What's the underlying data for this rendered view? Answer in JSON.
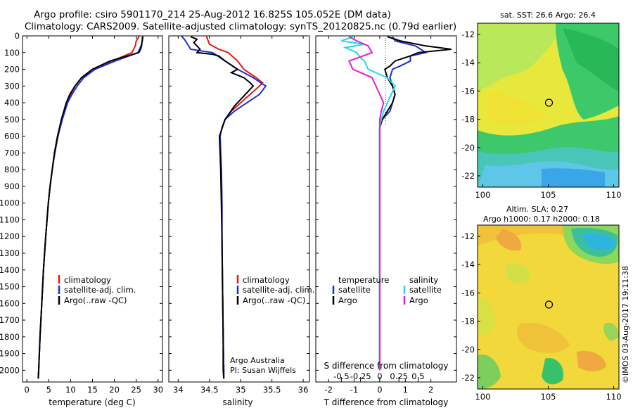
{
  "header": {
    "line1": "Argo profile: csiro 5901170_214 25-Aug-2012 16.825S 105.052E (DM data)",
    "line2": "Climatology: CARS2009. Satellite-adjusted climatology: synTS_20120825.nc (0.79d earlier)"
  },
  "colors": {
    "climatology": "#e8190f",
    "satellite": "#1a2fd6",
    "argo": "#000000",
    "satellite_diff": "#22d8e8",
    "argo_diff": "#e81ad0"
  },
  "chart_data": [
    {
      "name": "temperature",
      "type": "line",
      "xlabel": "temperature (deg C)",
      "ylabel": "",
      "xlim": [
        -1,
        31
      ],
      "ylim": [
        2070,
        0
      ],
      "xticks": [
        0,
        5,
        10,
        15,
        20,
        25,
        30
      ],
      "yticks": [
        0,
        100,
        200,
        300,
        400,
        500,
        600,
        700,
        800,
        900,
        1000,
        1100,
        1200,
        1300,
        1400,
        1500,
        1600,
        1700,
        1800,
        1900,
        2000
      ],
      "legend": [
        "climatology",
        "satellite-adj. clim.",
        "Argo(..raw -QC)"
      ],
      "series": [
        {
          "name": "climatology",
          "depth": [
            0,
            10,
            30,
            60,
            100,
            150,
            200,
            250,
            300,
            350,
            400,
            500,
            600,
            700,
            800,
            900,
            1000,
            1200,
            1400,
            1600,
            1800,
            2000,
            2050
          ],
          "values": [
            25.7,
            25.5,
            25.0,
            24.8,
            24.0,
            19.5,
            15.0,
            12.5,
            11.0,
            10.0,
            9.0,
            8.0,
            7.0,
            6.3,
            5.8,
            5.3,
            4.9,
            4.3,
            3.8,
            3.4,
            3.0,
            2.7,
            2.6
          ]
        },
        {
          "name": "satellite-adj. clim.",
          "depth": [
            0,
            10,
            30,
            60,
            100,
            150,
            200,
            250,
            300,
            350,
            400,
            500,
            600,
            700,
            800,
            900,
            1000,
            1200,
            1400,
            1600,
            1800,
            2000,
            2050
          ],
          "values": [
            26.6,
            26.5,
            26.4,
            26.1,
            25.4,
            20.2,
            15.6,
            13.0,
            11.5,
            10.3,
            9.3,
            8.1,
            7.1,
            6.4,
            5.8,
            5.3,
            4.9,
            4.3,
            3.8,
            3.4,
            3.0,
            2.7,
            2.6
          ]
        },
        {
          "name": "Argo(..raw -QC)",
          "depth": [
            5,
            20,
            40,
            60,
            80,
            100,
            150,
            200,
            250,
            300,
            350,
            400,
            500,
            600,
            700,
            800,
            900,
            1000,
            1200,
            1400,
            1600,
            1800,
            2000,
            2050
          ],
          "values": [
            26.4,
            26.4,
            26.3,
            26.2,
            26.0,
            25.6,
            19.0,
            15.0,
            12.5,
            11.0,
            9.8,
            9.0,
            7.9,
            7.0,
            6.3,
            5.8,
            5.3,
            4.9,
            4.3,
            3.8,
            3.4,
            3.0,
            2.7,
            2.6
          ]
        }
      ],
      "annotations": []
    },
    {
      "name": "salinity",
      "type": "line",
      "xlabel": "salinity",
      "ylabel": "",
      "xlim": [
        33.85,
        36.1
      ],
      "ylim": [
        2070,
        0
      ],
      "xticks": [
        34,
        34.5,
        35,
        35.5,
        36
      ],
      "legend": [
        "climatology",
        "satellite-adj. clim.",
        "Argo(..raw -QC)"
      ],
      "series": [
        {
          "name": "climatology",
          "depth": [
            0,
            50,
            80,
            100,
            150,
            200,
            250,
            280,
            300,
            350,
            400,
            450,
            500,
            550,
            600,
            700,
            800,
            1000,
            1200,
            1500,
            1800,
            2000,
            2050
          ],
          "values": [
            34.45,
            34.5,
            34.65,
            34.8,
            34.95,
            35.05,
            35.25,
            35.35,
            35.3,
            35.15,
            35.0,
            34.85,
            34.75,
            34.7,
            34.67,
            34.68,
            34.69,
            34.7,
            34.7,
            34.71,
            34.72,
            34.73,
            34.73
          ]
        },
        {
          "name": "satellite-adj. clim.",
          "depth": [
            0,
            20,
            50,
            80,
            100,
            150,
            200,
            250,
            300,
            350,
            400,
            450,
            500,
            550,
            600,
            700,
            800,
            1000,
            1200,
            1500,
            1800,
            2000,
            2050
          ],
          "values": [
            34.05,
            34.1,
            34.15,
            34.2,
            34.55,
            34.75,
            34.95,
            35.2,
            35.4,
            35.3,
            35.1,
            34.9,
            34.75,
            34.7,
            34.67,
            34.68,
            34.69,
            34.7,
            34.7,
            34.71,
            34.72,
            34.73,
            34.73
          ]
        },
        {
          "name": "Argo(..raw -QC)",
          "depth": [
            5,
            20,
            40,
            60,
            80,
            100,
            110,
            120,
            150,
            200,
            220,
            250,
            280,
            300,
            340,
            380,
            420,
            500,
            600,
            700,
            800,
            1000,
            1200,
            1500,
            1800,
            2000,
            2050
          ],
          "values": [
            34.2,
            34.3,
            34.25,
            34.3,
            34.35,
            34.3,
            34.55,
            34.65,
            34.75,
            34.95,
            34.85,
            35.05,
            35.15,
            35.2,
            35.1,
            35.0,
            34.9,
            34.75,
            34.66,
            34.67,
            34.68,
            34.69,
            34.7,
            34.71,
            34.72,
            34.72,
            34.73
          ]
        }
      ],
      "annotations": [
        "Argo Australia",
        "PI: Susan Wijffels"
      ]
    },
    {
      "name": "difference_from_climatology",
      "type": "line",
      "xlabel": "T difference from climatology",
      "top_xlabel": "S difference from climatology",
      "xlim": [
        -2.5,
        3.0
      ],
      "ylim": [
        2070,
        0
      ],
      "xticks": [
        -2,
        -1,
        0,
        1,
        2
      ],
      "top_xticks": [
        "-0.5",
        "-0.25",
        "0",
        "0.25",
        "0.5"
      ],
      "legend_titles": [
        "temperature",
        "salinity"
      ],
      "legend": [
        "satellite",
        "Argo",
        "satellite",
        "Argo"
      ],
      "series": [
        {
          "name": "temperature satellite",
          "depth": [
            5,
            30,
            60,
            100,
            120,
            150,
            180,
            200,
            250,
            300,
            350,
            400,
            450,
            500,
            550,
            600,
            700,
            800,
            1000,
            1200,
            1500,
            2000
          ],
          "values": [
            0.5,
            0.6,
            1.4,
            1.8,
            1.2,
            1.2,
            0.8,
            0.5,
            0.4,
            0.5,
            0.6,
            0.5,
            0.4,
            0.1,
            0.0,
            0.0,
            0.0,
            0.0,
            0.0,
            0.0,
            0.0,
            0.0
          ]
        },
        {
          "name": "temperature Argo",
          "depth": [
            5,
            30,
            60,
            80,
            100,
            120,
            150,
            180,
            200,
            250,
            300,
            350,
            400,
            450,
            500,
            550,
            600,
            700,
            800,
            1000,
            1200,
            1500,
            2000
          ],
          "values": [
            0.3,
            0.8,
            1.8,
            2.8,
            1.5,
            1.2,
            0.6,
            0.4,
            0.2,
            0.3,
            0.5,
            0.6,
            0.5,
            0.3,
            0.1,
            0.0,
            0.0,
            0.0,
            0.0,
            0.0,
            0.0,
            0.0,
            0.0
          ]
        },
        {
          "name": "salinity satellite",
          "depth": [
            5,
            30,
            50,
            70,
            100,
            130,
            150,
            200,
            250,
            300,
            350,
            400,
            450,
            500,
            550,
            600,
            700,
            800,
            1000,
            1200,
            1500,
            2000
          ],
          "values": [
            -0.35,
            -0.5,
            -0.2,
            -0.45,
            -0.3,
            -0.25,
            -0.2,
            -0.15,
            0.1,
            0.2,
            0.15,
            0.1,
            0.05,
            0.02,
            0.0,
            0.0,
            0.0,
            0.0,
            0.0,
            0.0,
            0.0,
            0.0
          ]
        },
        {
          "name": "salinity Argo",
          "depth": [
            5,
            30,
            60,
            100,
            150,
            200,
            250,
            300,
            350,
            400,
            450,
            500,
            550,
            600,
            700,
            800,
            1000,
            1200,
            1500,
            2000
          ],
          "values": [
            -0.4,
            -0.3,
            -0.15,
            -0.1,
            -0.4,
            -0.35,
            -0.1,
            -0.05,
            0.0,
            0.05,
            0.02,
            0.0,
            0.0,
            0.0,
            0.0,
            0.0,
            0.0,
            0.0,
            0.0,
            0.0
          ]
        }
      ],
      "annotations": []
    },
    {
      "name": "sst_map",
      "type": "heatmap",
      "title": "sat. SST: 26.6  Argo: 26.4",
      "xlim": [
        99.6,
        110.4
      ],
      "ylim": [
        -22.8,
        -11.2
      ],
      "xticks": [
        100,
        105,
        110
      ],
      "yticks": [
        -12,
        -14,
        -16,
        -18,
        -20,
        -22
      ],
      "marker": {
        "lon": 105.052,
        "lat": -16.825
      }
    },
    {
      "name": "sla_map",
      "type": "heatmap",
      "title": "Altim. SLA: 0.27",
      "subtitle": "Argo h1000: 0.17  h2000: 0.18",
      "xlim": [
        99.6,
        110.4
      ],
      "ylim": [
        -22.8,
        -11.2
      ],
      "xticks": [
        100,
        105,
        110
      ],
      "yticks": [
        -12,
        -14,
        -16,
        -18,
        -20,
        -22
      ],
      "marker": {
        "lon": 105.052,
        "lat": -16.825
      }
    }
  ],
  "footer": {
    "credit": "©IMOS 03-Aug-2017 19:11:38"
  }
}
